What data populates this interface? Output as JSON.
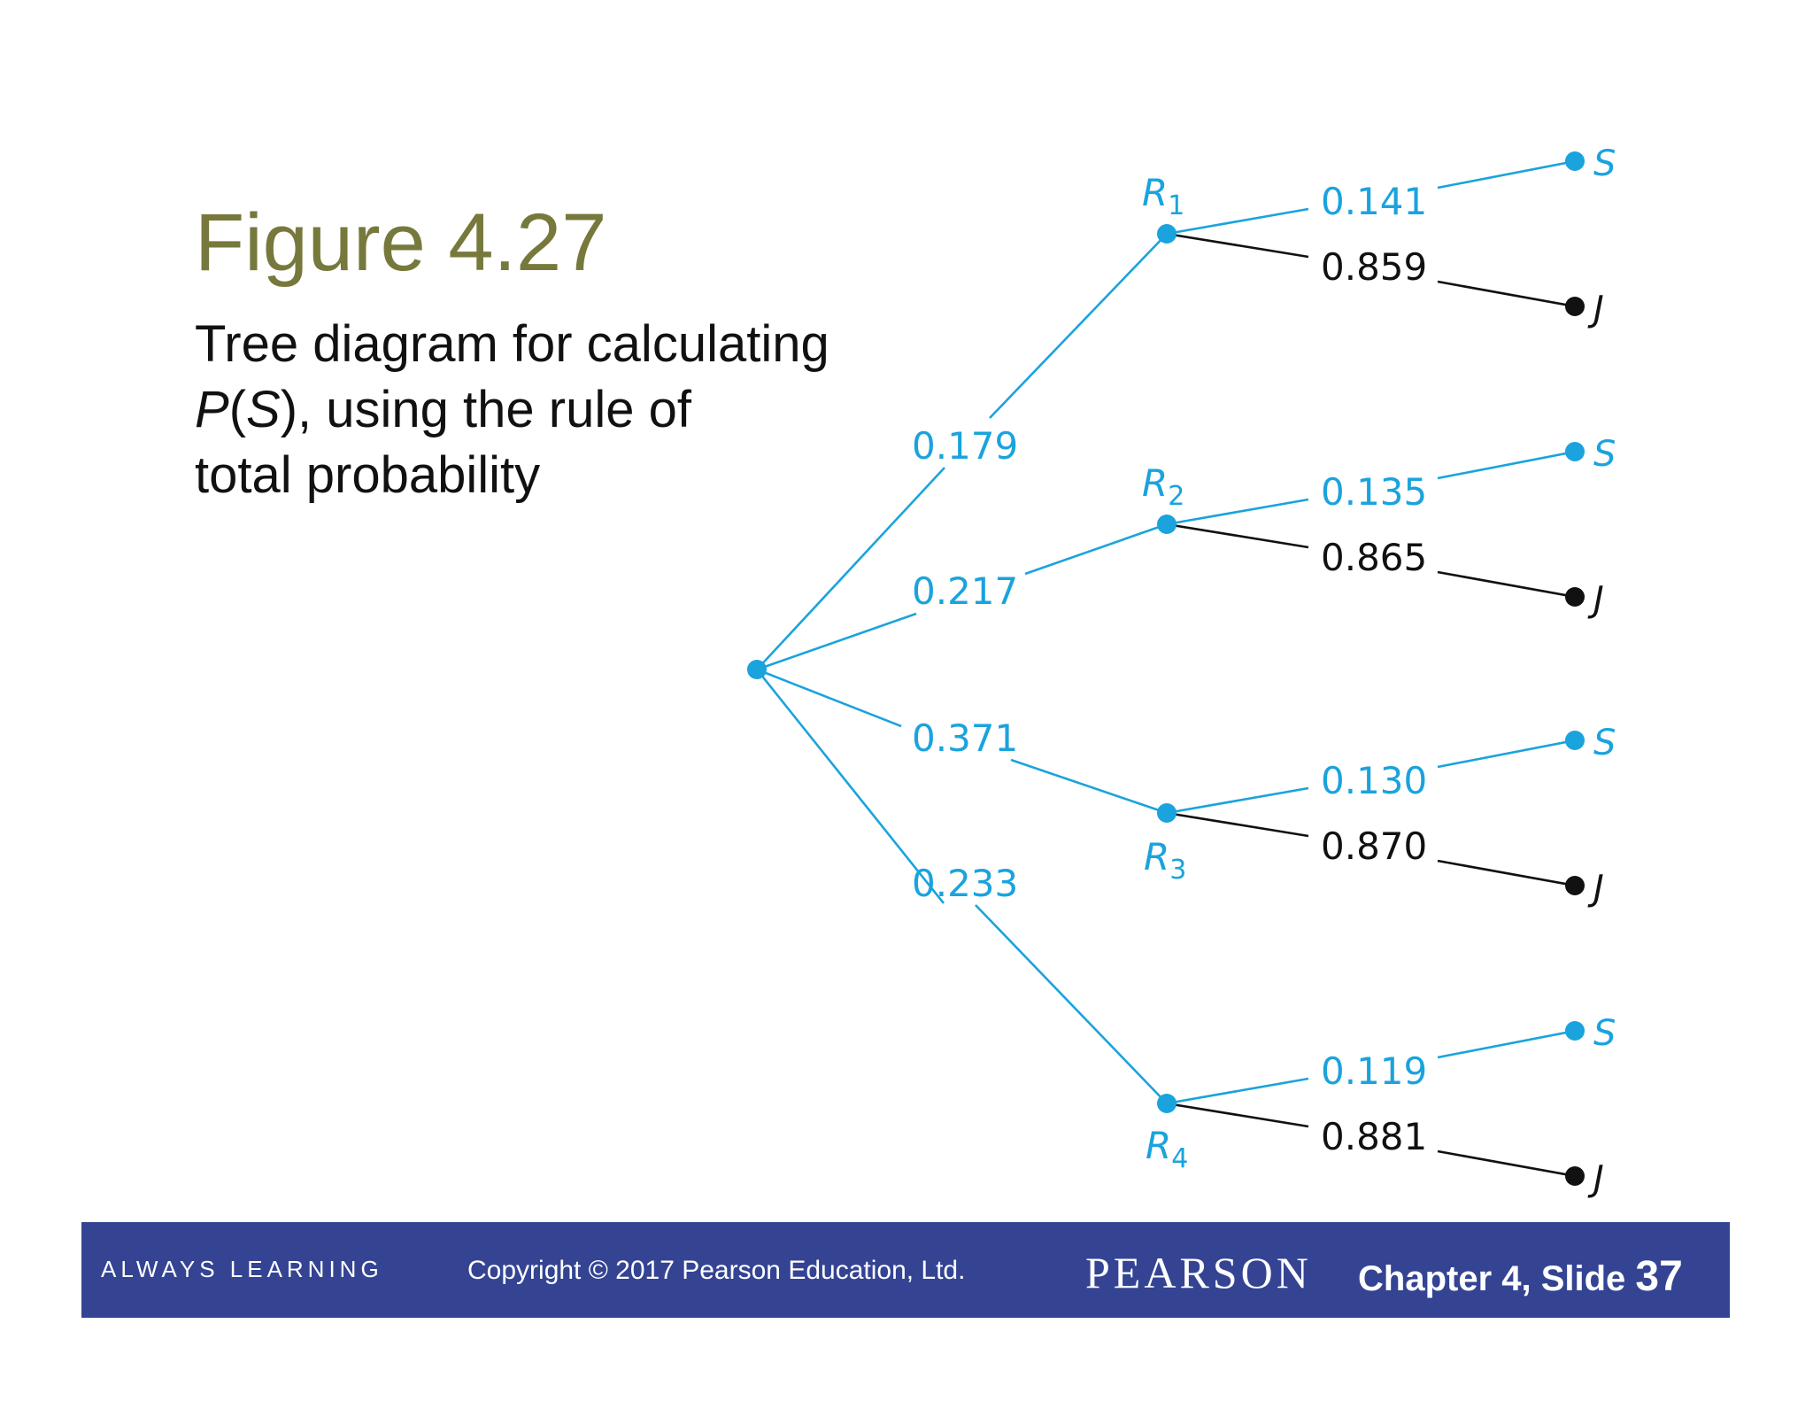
{
  "title": "Figure 4.27",
  "caption": {
    "line1": "Tree diagram for calculating",
    "line2_p": "P",
    "line2_open": "(",
    "line2_s": "S",
    "line2_rest": "), using the rule of",
    "line3": "total probability"
  },
  "colors": {
    "branch_blue": "#1aa3dd",
    "branch_black": "#111111",
    "title_olive": "#77793c",
    "footer_bg": "#344493"
  },
  "tree": {
    "first_level": [
      {
        "node": "R",
        "sub": "1",
        "prob": "0.179",
        "s_prob": "0.141",
        "j_prob": "0.859"
      },
      {
        "node": "R",
        "sub": "2",
        "prob": "0.217",
        "s_prob": "0.135",
        "j_prob": "0.865"
      },
      {
        "node": "R",
        "sub": "3",
        "prob": "0.371",
        "s_prob": "0.130",
        "j_prob": "0.870"
      },
      {
        "node": "R",
        "sub": "4",
        "prob": "0.233",
        "s_prob": "0.119",
        "j_prob": "0.881"
      }
    ],
    "leaf_s": "S",
    "leaf_j": "J"
  },
  "footer": {
    "always_learning": "ALWAYS LEARNING",
    "copyright": "Copyright © 2017 Pearson Education, Ltd.",
    "brand": "PEARSON",
    "chapter": "Chapter 4,  Slide ",
    "slide_number": "37"
  }
}
